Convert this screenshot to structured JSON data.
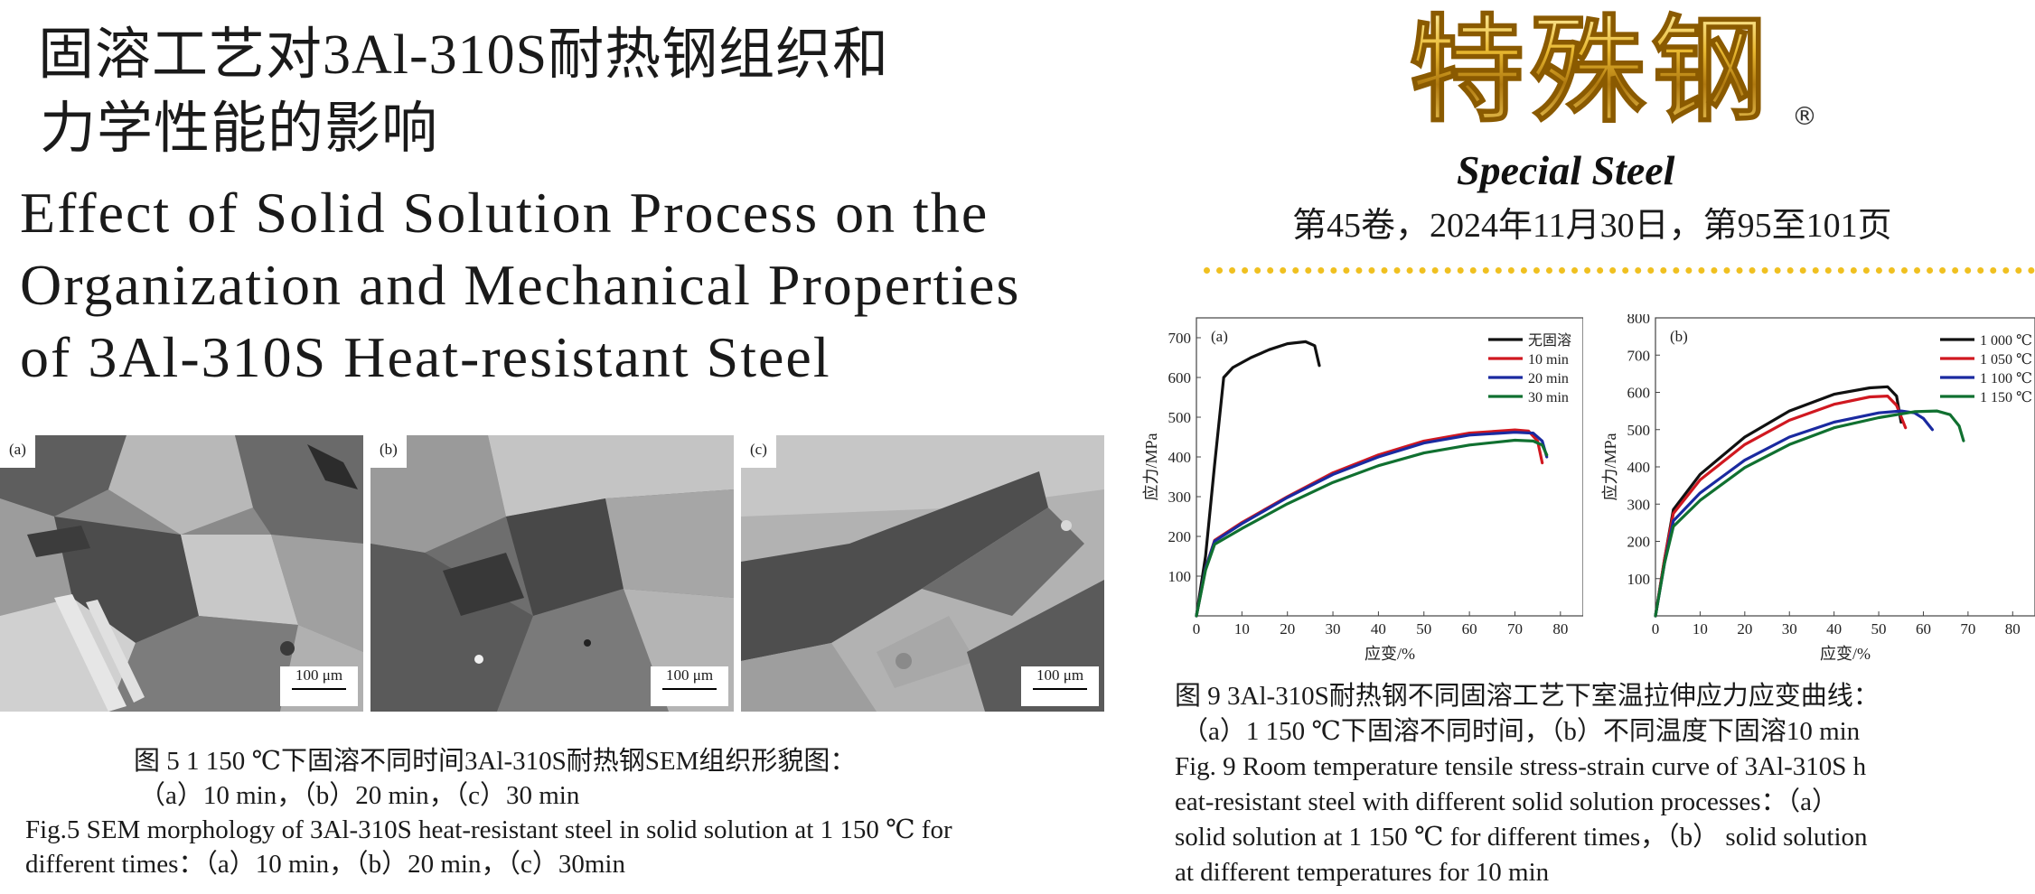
{
  "journal": {
    "logo_zh": "特殊钢",
    "logo_reg": "®",
    "logo_en": "Special Steel",
    "issue": "第45卷，2024年11月30日，第95至101页"
  },
  "title": {
    "zh_line1": "固溶工艺对3Al-310S耐热钢组织和",
    "zh_line2": "力学性能的影响",
    "en_line1": "Effect of Solid Solution Process on the",
    "en_line2": "Organization and Mechanical Properties",
    "en_line3": "of 3Al-310S Heat-resistant Steel"
  },
  "fig5": {
    "panels": [
      {
        "label": "(a)",
        "scale": "100 μm"
      },
      {
        "label": "(b)",
        "scale": "100 μm"
      },
      {
        "label": "(c)",
        "scale": "100 μm"
      }
    ],
    "caption_zh_1": "图 5 1 150 ℃下固溶不同时间3Al-310S耐热钢SEM组织形貌图：",
    "caption_zh_2": "（a）10 min，（b）20 min，（c）30 min",
    "caption_en_1": "Fig.5 SEM morphology of 3Al-310S heat-resistant steel in solid solution at 1 150 ℃ for",
    "caption_en_2": "different times：（a）10 min，（b）20 min，（c）30min"
  },
  "chart_data": [
    {
      "type": "line",
      "panel_label": "(a)",
      "xlabel": "应变/%",
      "ylabel": "应力/MPa",
      "xlim": [
        0,
        85
      ],
      "ylim": [
        0,
        750
      ],
      "xticks": [
        0,
        10,
        20,
        30,
        40,
        50,
        60,
        70,
        80
      ],
      "yticks": [
        100,
        200,
        300,
        400,
        500,
        600,
        700
      ],
      "legend_position": "top-right",
      "series": [
        {
          "name": "无固溶",
          "color": "#111111",
          "points": [
            [
              0,
              0
            ],
            [
              2,
              150
            ],
            [
              4,
              380
            ],
            [
              6,
              600
            ],
            [
              8,
              625
            ],
            [
              12,
              650
            ],
            [
              16,
              670
            ],
            [
              20,
              685
            ],
            [
              24,
              690
            ],
            [
              26,
              680
            ],
            [
              27,
              630
            ]
          ]
        },
        {
          "name": "10 min",
          "color": "#d01820",
          "points": [
            [
              0,
              0
            ],
            [
              2,
              120
            ],
            [
              4,
              190
            ],
            [
              10,
              235
            ],
            [
              20,
              300
            ],
            [
              30,
              360
            ],
            [
              40,
              405
            ],
            [
              50,
              440
            ],
            [
              60,
              460
            ],
            [
              70,
              468
            ],
            [
              73,
              465
            ],
            [
              75,
              440
            ],
            [
              76,
              385
            ]
          ]
        },
        {
          "name": "20 min",
          "color": "#1a2aa0",
          "points": [
            [
              0,
              0
            ],
            [
              2,
              120
            ],
            [
              4,
              188
            ],
            [
              10,
              232
            ],
            [
              20,
              298
            ],
            [
              30,
              356
            ],
            [
              40,
              400
            ],
            [
              50,
              435
            ],
            [
              60,
              455
            ],
            [
              70,
              462
            ],
            [
              74,
              460
            ],
            [
              76,
              440
            ],
            [
              77,
              400
            ]
          ]
        },
        {
          "name": "30 min",
          "color": "#107030",
          "points": [
            [
              0,
              0
            ],
            [
              2,
              115
            ],
            [
              4,
              180
            ],
            [
              10,
              220
            ],
            [
              20,
              282
            ],
            [
              30,
              336
            ],
            [
              40,
              378
            ],
            [
              50,
              410
            ],
            [
              60,
              430
            ],
            [
              70,
              442
            ],
            [
              74,
              440
            ],
            [
              76,
              430
            ],
            [
              77,
              405
            ]
          ]
        }
      ]
    },
    {
      "type": "line",
      "panel_label": "(b)",
      "xlabel": "应变/%",
      "ylabel": "应力/MPa",
      "xlim": [
        0,
        85
      ],
      "ylim": [
        0,
        800
      ],
      "xticks": [
        0,
        10,
        20,
        30,
        40,
        50,
        60,
        70,
        80
      ],
      "yticks": [
        100,
        200,
        300,
        400,
        500,
        600,
        700,
        800
      ],
      "legend_position": "top-right",
      "series": [
        {
          "name": "1 000 ℃",
          "color": "#111111",
          "points": [
            [
              0,
              0
            ],
            [
              2,
              150
            ],
            [
              4,
              285
            ],
            [
              10,
              380
            ],
            [
              20,
              480
            ],
            [
              30,
              550
            ],
            [
              40,
              595
            ],
            [
              48,
              612
            ],
            [
              52,
              615
            ],
            [
              54,
              590
            ],
            [
              55,
              520
            ]
          ]
        },
        {
          "name": "1 050 ℃",
          "color": "#d01820",
          "points": [
            [
              0,
              0
            ],
            [
              2,
              150
            ],
            [
              4,
              275
            ],
            [
              10,
              365
            ],
            [
              20,
              460
            ],
            [
              30,
              525
            ],
            [
              40,
              568
            ],
            [
              48,
              588
            ],
            [
              52,
              590
            ],
            [
              54,
              565
            ],
            [
              56,
              505
            ]
          ]
        },
        {
          "name": "1 100 ℃",
          "color": "#1a2aa0",
          "points": [
            [
              0,
              0
            ],
            [
              2,
              140
            ],
            [
              4,
              255
            ],
            [
              10,
              330
            ],
            [
              20,
              418
            ],
            [
              30,
              480
            ],
            [
              40,
              520
            ],
            [
              50,
              545
            ],
            [
              55,
              550
            ],
            [
              58,
              545
            ],
            [
              60,
              530
            ],
            [
              62,
              500
            ]
          ]
        },
        {
          "name": "1 150 ℃",
          "color": "#107030",
          "points": [
            [
              0,
              0
            ],
            [
              2,
              140
            ],
            [
              4,
              240
            ],
            [
              10,
              310
            ],
            [
              20,
              398
            ],
            [
              30,
              460
            ],
            [
              40,
              505
            ],
            [
              50,
              532
            ],
            [
              58,
              548
            ],
            [
              63,
              550
            ],
            [
              66,
              540
            ],
            [
              68,
              510
            ],
            [
              69,
              470
            ]
          ]
        }
      ]
    }
  ],
  "fig9": {
    "caption_zh_1": "图 9 3Al-310S耐热钢不同固溶工艺下室温拉伸应力应变曲线：",
    "caption_zh_2": "（a）1 150 ℃下固溶不同时间，（b）不同温度下固溶10 min",
    "caption_en_1": "Fig. 9 Room temperature tensile stress-strain curve of 3Al-310S h",
    "caption_en_2": "eat-resistant steel with different solid solution processes：（a）",
    "caption_en_3": "solid solution at 1 150 ℃ for different times，（b） solid solution",
    "caption_en_4": "at different temperatures for 10 min"
  }
}
